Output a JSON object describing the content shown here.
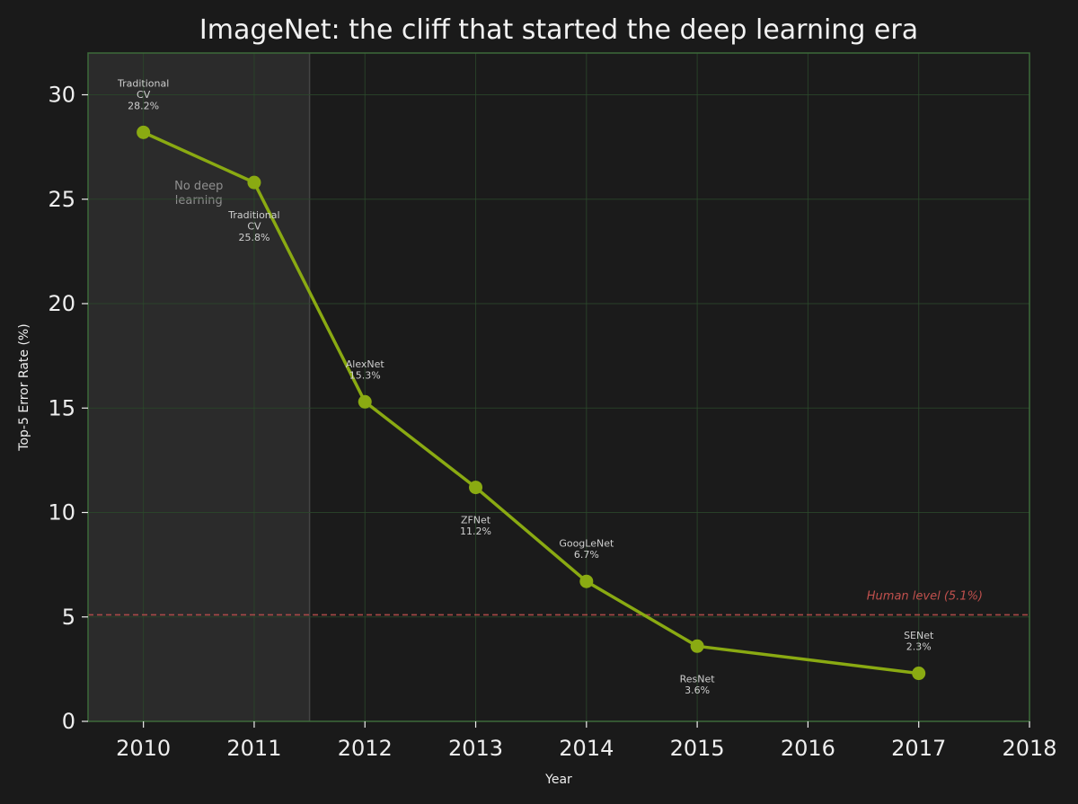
{
  "chart_data": {
    "type": "line",
    "title": "ImageNet: the cliff that started the deep learning era",
    "xlabel": "Year",
    "ylabel": "Top-5 Error Rate (%)",
    "xlim": [
      2009.5,
      2018
    ],
    "ylim": [
      0,
      32
    ],
    "x_ticks": [
      2010,
      2011,
      2012,
      2013,
      2014,
      2015,
      2016,
      2017,
      2018
    ],
    "y_ticks": [
      0,
      5,
      10,
      15,
      20,
      25,
      30
    ],
    "grid": true,
    "series": [
      {
        "color": "#8aaa12",
        "points": [
          {
            "x": 2010,
            "y": 28.2,
            "label": [
              "Traditional",
              "CV",
              "28.2%"
            ],
            "label_pos": "above"
          },
          {
            "x": 2011,
            "y": 25.8,
            "label": [
              "Traditional",
              "CV",
              "25.8%"
            ],
            "label_pos": "below"
          },
          {
            "x": 2012,
            "y": 15.3,
            "label": [
              "AlexNet",
              "15.3%"
            ],
            "label_pos": "above"
          },
          {
            "x": 2013,
            "y": 11.2,
            "label": [
              "ZFNet",
              "11.2%"
            ],
            "label_pos": "below"
          },
          {
            "x": 2014,
            "y": 6.7,
            "label": [
              "GoogLeNet",
              "6.7%"
            ],
            "label_pos": "above"
          },
          {
            "x": 2015,
            "y": 3.6,
            "label": [
              "ResNet",
              "3.6%"
            ],
            "label_pos": "below"
          },
          {
            "x": 2017,
            "y": 2.3,
            "label": [
              "SENet",
              "2.3%"
            ],
            "label_pos": "above"
          }
        ]
      }
    ],
    "reference_line": {
      "y": 5.1,
      "label": "Human level (5.1%)",
      "color": "#c0504d",
      "style": "dashed"
    },
    "shaded_region": {
      "x_start": 2009.5,
      "x_end": 2011.5,
      "label": [
        "No deep",
        "learning"
      ]
    }
  }
}
